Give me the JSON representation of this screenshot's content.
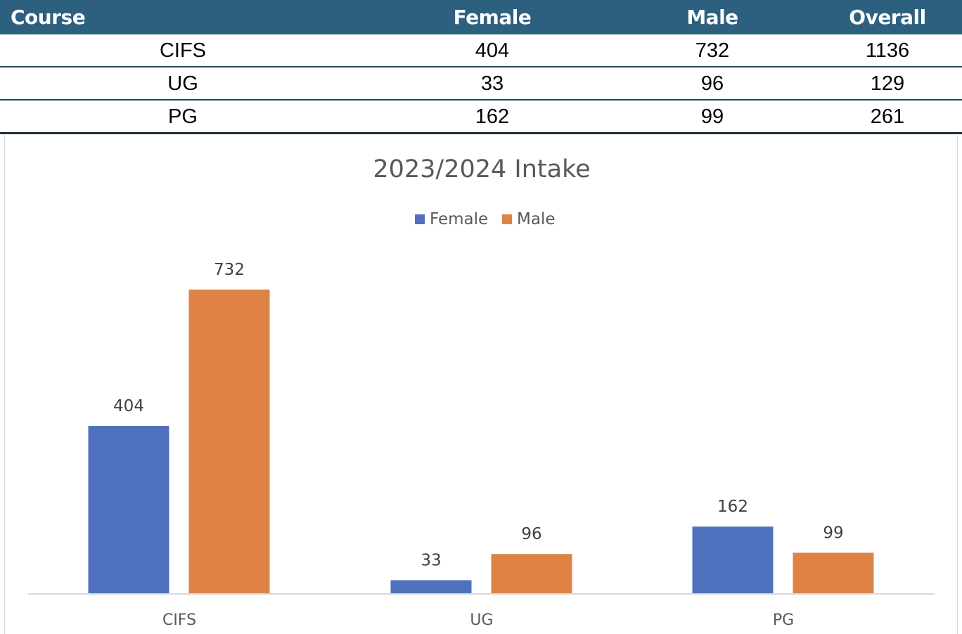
{
  "table": {
    "headers": [
      "Course",
      "Female",
      "Male",
      "Overall"
    ],
    "rows": [
      [
        "CIFS",
        "404",
        "732",
        "1136"
      ],
      [
        "UG",
        "33",
        "96",
        "129"
      ],
      [
        "PG",
        "162",
        "99",
        "261"
      ]
    ],
    "header_bg": "#2d5f7f"
  },
  "chart_data": {
    "type": "bar",
    "title": "2023/2024 Intake",
    "categories": [
      "CIFS",
      "UG",
      "PG"
    ],
    "series": [
      {
        "name": "Female",
        "values": [
          404,
          33,
          162
        ],
        "color": "#4f71be"
      },
      {
        "name": "Male",
        "values": [
          732,
          96,
          99
        ],
        "color": "#de8344"
      }
    ],
    "legend_position": "top",
    "data_labels": true,
    "grid": false,
    "ylim": [
      0,
      800
    ]
  }
}
